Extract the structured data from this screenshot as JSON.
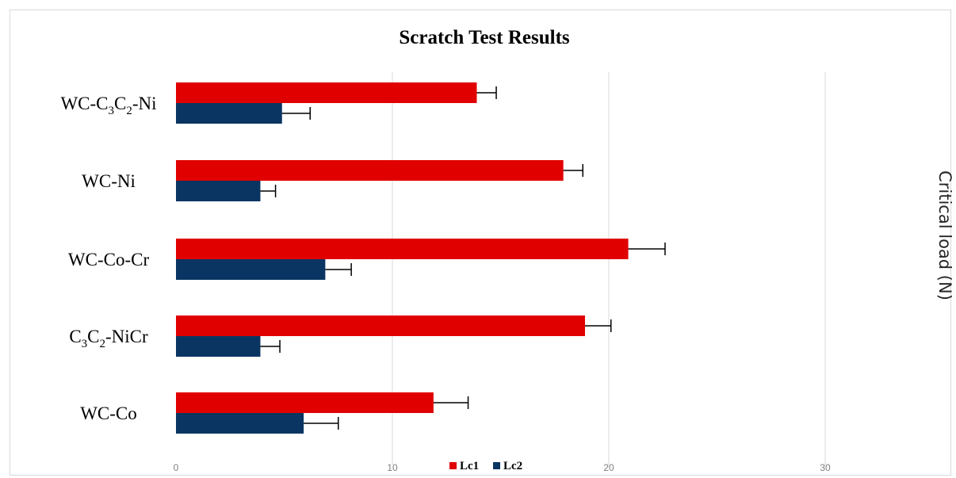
{
  "chart_data": {
    "type": "bar",
    "orientation": "horizontal",
    "title": "Scratch Test Results",
    "ylabel": "Critical load (N)",
    "xlim": [
      0,
      35
    ],
    "xticks": [
      0,
      10,
      20,
      30
    ],
    "grid": true,
    "legend_position": "bottom",
    "categories": [
      {
        "parts": [
          [
            "WC-C",
            ""
          ],
          [
            "3",
            "sub"
          ],
          [
            "C",
            ""
          ],
          [
            "2",
            "sub"
          ],
          [
            "-Ni",
            ""
          ]
        ]
      },
      {
        "parts": [
          [
            "WC-Ni",
            ""
          ]
        ]
      },
      {
        "parts": [
          [
            "WC-Co-Cr",
            ""
          ]
        ]
      },
      {
        "parts": [
          [
            "C",
            ""
          ],
          [
            "3",
            "sub"
          ],
          [
            "C",
            ""
          ],
          [
            "2",
            "sub"
          ],
          [
            "-NiCr",
            ""
          ]
        ]
      },
      {
        "parts": [
          [
            "WC-Co",
            ""
          ]
        ]
      }
    ],
    "series": [
      {
        "name": "Lc1",
        "color": "#e10000",
        "values": [
          13.9,
          17.9,
          20.9,
          18.9,
          11.9
        ],
        "errors": [
          0.9,
          0.9,
          1.7,
          1.2,
          1.6
        ]
      },
      {
        "name": "Lc2",
        "color": "#0a3563",
        "values": [
          4.9,
          3.9,
          6.9,
          3.9,
          5.9
        ],
        "errors": [
          1.3,
          0.7,
          1.2,
          0.9,
          1.6
        ]
      }
    ]
  }
}
